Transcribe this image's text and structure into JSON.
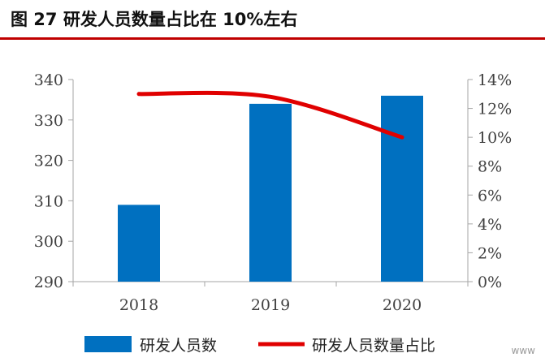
{
  "figure": {
    "title": "图  27  研发人员数量占比在 10%左右"
  },
  "chart_data": {
    "type": "bar",
    "categories": [
      "2018",
      "2019",
      "2020"
    ],
    "series": [
      {
        "name": "研发人员数",
        "type": "bar",
        "axis": "left",
        "values": [
          309,
          334,
          336
        ],
        "color": "#0070c0"
      },
      {
        "name": "研发人员数量占比",
        "type": "line",
        "axis": "right",
        "values": [
          0.13,
          0.128,
          0.1
        ],
        "color": "#e00000"
      }
    ],
    "left_axis": {
      "ticks": [
        "340",
        "330",
        "320",
        "310",
        "300",
        "290"
      ],
      "ylim": [
        290,
        340
      ]
    },
    "right_axis": {
      "ticks": [
        "14%",
        "12%",
        "10%",
        "8%",
        "6%",
        "4%",
        "2%",
        "0%"
      ],
      "ylim": [
        0,
        0.14
      ]
    },
    "legend_position": "bottom",
    "grid": false
  },
  "watermark": "www"
}
